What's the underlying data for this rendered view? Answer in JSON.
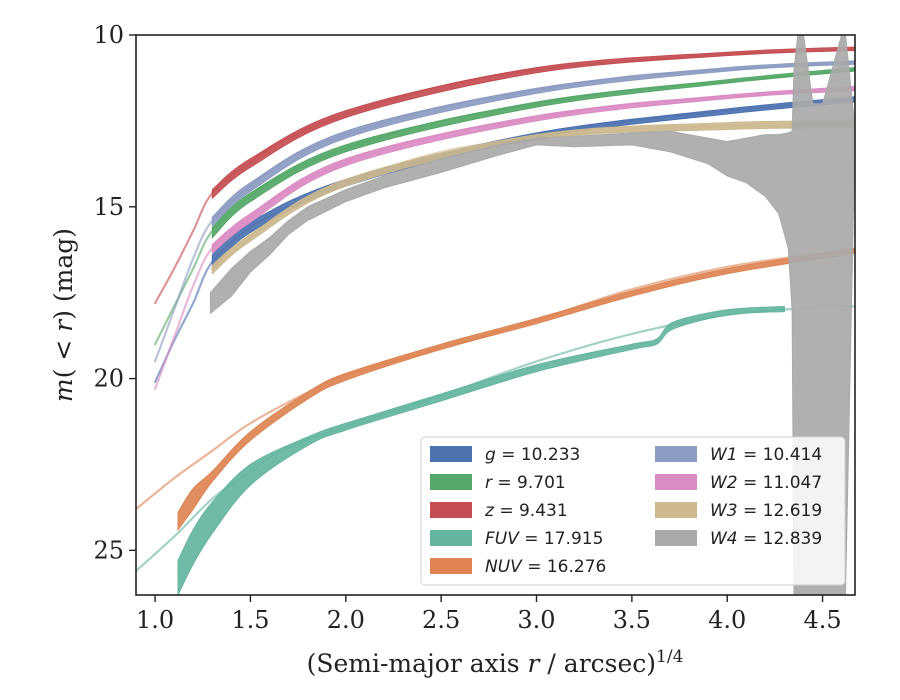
{
  "chart_data": {
    "type": "line",
    "xlabel_main": "(Semi-major axis ",
    "xlabel_var": "r",
    "xlabel_rest": " / arcsec)",
    "xlabel_exp": "1/4",
    "ylabel_main": "m",
    "ylabel_args": "( < ",
    "ylabel_var": "r",
    "ylabel_close": ")",
    "ylabel_unit": " (mag)",
    "xlim": [
      0.9,
      4.67
    ],
    "ylim": [
      26.3,
      10.0
    ],
    "y_inverted": true,
    "x_ticks": [
      1.0,
      1.5,
      2.0,
      2.5,
      3.0,
      3.5,
      4.0,
      4.5
    ],
    "x_tick_labels": [
      "1.0",
      "1.5",
      "2.0",
      "2.5",
      "3.0",
      "3.5",
      "4.0",
      "4.5"
    ],
    "y_ticks": [
      10,
      15,
      20,
      25
    ],
    "y_tick_labels": [
      "10",
      "15",
      "20",
      "25"
    ],
    "grid": false,
    "legend_position": "lower-right",
    "series": [
      {
        "name": "g",
        "value": "10.233",
        "color": "#4c72b0",
        "data": [
          [
            1.0,
            20.1
          ],
          [
            1.1,
            18.9
          ],
          [
            1.2,
            17.8
          ],
          [
            1.3,
            16.6
          ],
          [
            1.5,
            15.6
          ],
          [
            1.7,
            15.0
          ],
          [
            2.0,
            14.3
          ],
          [
            2.5,
            13.5
          ],
          [
            3.0,
            12.9
          ],
          [
            3.5,
            12.5
          ],
          [
            4.0,
            12.2
          ],
          [
            4.5,
            11.95
          ],
          [
            4.67,
            11.85
          ]
        ],
        "thick": [
          [
            1.3,
            16.4,
            16.8
          ],
          [
            1.5,
            15.45,
            15.75
          ],
          [
            2.0,
            14.2,
            14.4
          ],
          [
            3.0,
            12.85,
            13.0
          ],
          [
            4.0,
            12.15,
            12.3
          ],
          [
            4.67,
            11.8,
            11.95
          ]
        ]
      },
      {
        "name": "r",
        "value": "9.701",
        "color": "#55a868",
        "data": [
          [
            1.0,
            19.0
          ],
          [
            1.1,
            17.9
          ],
          [
            1.2,
            16.8
          ],
          [
            1.3,
            15.7
          ],
          [
            1.5,
            14.7
          ],
          [
            1.7,
            14.0
          ],
          [
            2.0,
            13.3
          ],
          [
            2.5,
            12.5
          ],
          [
            3.0,
            12.0
          ],
          [
            3.5,
            11.6
          ],
          [
            4.0,
            11.35
          ],
          [
            4.5,
            11.1
          ],
          [
            4.67,
            11.0
          ]
        ],
        "thick": [
          [
            1.3,
            15.6,
            15.9
          ],
          [
            1.5,
            14.6,
            14.85
          ],
          [
            2.0,
            13.2,
            13.4
          ],
          [
            3.0,
            11.95,
            12.1
          ],
          [
            4.0,
            11.3,
            11.4
          ],
          [
            4.67,
            10.95,
            11.05
          ]
        ]
      },
      {
        "name": "z",
        "value": "9.431",
        "color": "#c44e52",
        "data": [
          [
            1.0,
            17.8
          ],
          [
            1.1,
            16.8
          ],
          [
            1.2,
            15.7
          ],
          [
            1.3,
            14.6
          ],
          [
            1.5,
            13.7
          ],
          [
            1.7,
            13.0
          ],
          [
            2.0,
            12.3
          ],
          [
            2.5,
            11.5
          ],
          [
            3.0,
            11.0
          ],
          [
            3.5,
            10.75
          ],
          [
            4.0,
            10.55
          ],
          [
            4.5,
            10.45
          ],
          [
            4.67,
            10.4
          ]
        ],
        "thick": [
          [
            1.3,
            14.5,
            14.75
          ],
          [
            1.5,
            13.6,
            13.85
          ],
          [
            2.0,
            12.2,
            12.4
          ],
          [
            3.0,
            10.95,
            11.1
          ],
          [
            4.0,
            10.5,
            10.6
          ],
          [
            4.67,
            10.35,
            10.45
          ]
        ]
      },
      {
        "name": "FUV",
        "value": "17.915",
        "color": "#64b5a0",
        "data": [
          [
            0.9,
            25.6
          ],
          [
            1.1,
            24.6
          ],
          [
            1.3,
            23.5
          ],
          [
            1.5,
            22.7
          ],
          [
            1.7,
            22.0
          ],
          [
            2.0,
            21.4
          ],
          [
            2.5,
            20.5
          ],
          [
            3.0,
            19.5
          ],
          [
            3.5,
            18.7
          ],
          [
            4.0,
            18.15
          ],
          [
            4.5,
            17.92
          ],
          [
            4.67,
            17.9
          ]
        ],
        "thick": [
          [
            1.12,
            25.3,
            26.3
          ],
          [
            1.2,
            24.4,
            25.4
          ],
          [
            1.3,
            23.6,
            24.5
          ],
          [
            1.5,
            22.5,
            23.1
          ],
          [
            1.8,
            21.7,
            21.95
          ],
          [
            2.0,
            21.3,
            21.5
          ],
          [
            2.5,
            20.45,
            20.65
          ],
          [
            3.0,
            19.6,
            19.8
          ],
          [
            3.5,
            19.0,
            19.15
          ],
          [
            3.63,
            18.85,
            19.0
          ],
          [
            3.72,
            18.35,
            18.55
          ],
          [
            4.0,
            18.0,
            18.15
          ],
          [
            4.3,
            17.9,
            18.05
          ]
        ]
      },
      {
        "name": "NUV",
        "value": "16.276",
        "color": "#dd8452",
        "data": [
          [
            0.9,
            23.8
          ],
          [
            1.1,
            22.9
          ],
          [
            1.3,
            22.1
          ],
          [
            1.5,
            21.3
          ],
          [
            1.8,
            20.4
          ],
          [
            2.0,
            19.9
          ],
          [
            2.5,
            19.1
          ],
          [
            3.0,
            18.3
          ],
          [
            3.5,
            17.4
          ],
          [
            4.0,
            16.75
          ],
          [
            4.5,
            16.35
          ],
          [
            4.67,
            16.28
          ]
        ],
        "thick": [
          [
            1.12,
            23.9,
            24.4
          ],
          [
            1.2,
            23.2,
            23.8
          ],
          [
            1.3,
            22.7,
            23.0
          ],
          [
            1.5,
            21.55,
            21.8
          ],
          [
            1.8,
            20.4,
            20.6
          ],
          [
            2.0,
            19.85,
            20.05
          ],
          [
            2.5,
            19.0,
            19.15
          ],
          [
            3.0,
            18.25,
            18.4
          ],
          [
            3.5,
            17.45,
            17.6
          ],
          [
            4.0,
            16.8,
            16.95
          ],
          [
            4.67,
            16.2,
            16.35
          ]
        ]
      },
      {
        "name": "W1",
        "value": "10.414",
        "color": "#8c9bc2",
        "data": [
          [
            1.0,
            19.5
          ],
          [
            1.1,
            18.0
          ],
          [
            1.2,
            16.5
          ],
          [
            1.3,
            15.4
          ],
          [
            1.5,
            14.4
          ],
          [
            1.7,
            13.6
          ],
          [
            2.0,
            12.9
          ],
          [
            2.5,
            12.1
          ],
          [
            3.0,
            11.6
          ],
          [
            3.5,
            11.2
          ],
          [
            4.0,
            11.0
          ],
          [
            4.5,
            10.85
          ],
          [
            4.67,
            10.8
          ]
        ],
        "thick": [
          [
            1.3,
            15.3,
            15.55
          ],
          [
            1.5,
            14.3,
            14.55
          ],
          [
            2.0,
            12.8,
            13.0
          ],
          [
            3.0,
            11.55,
            11.7
          ],
          [
            4.0,
            10.95,
            11.05
          ],
          [
            4.67,
            10.75,
            10.85
          ]
        ]
      },
      {
        "name": "W2",
        "value": "11.047",
        "color": "#da8bc3",
        "data": [
          [
            1.0,
            20.3
          ],
          [
            1.1,
            18.8
          ],
          [
            1.2,
            17.3
          ],
          [
            1.3,
            16.2
          ],
          [
            1.5,
            15.3
          ],
          [
            1.7,
            14.5
          ],
          [
            2.0,
            13.7
          ],
          [
            2.5,
            12.9
          ],
          [
            3.0,
            12.4
          ],
          [
            3.5,
            12.0
          ],
          [
            4.0,
            11.8
          ],
          [
            4.5,
            11.62
          ],
          [
            4.67,
            11.58
          ]
        ],
        "thick": [
          [
            1.3,
            16.1,
            16.35
          ],
          [
            1.5,
            15.2,
            15.45
          ],
          [
            2.0,
            13.6,
            13.8
          ],
          [
            3.0,
            12.35,
            12.5
          ],
          [
            4.0,
            11.75,
            11.85
          ],
          [
            4.67,
            11.5,
            11.62
          ]
        ]
      },
      {
        "name": "W3",
        "value": "12.619",
        "color": "#ccb98e",
        "data": [
          [
            1.3,
            16.8
          ],
          [
            1.5,
            15.9
          ],
          [
            1.7,
            15.1
          ],
          [
            2.0,
            14.3
          ],
          [
            2.5,
            13.4
          ],
          [
            3.0,
            13.0
          ],
          [
            3.5,
            12.75
          ],
          [
            4.0,
            12.65
          ],
          [
            4.5,
            12.62
          ],
          [
            4.67,
            12.6
          ]
        ],
        "thick": [
          [
            1.3,
            16.7,
            16.95
          ],
          [
            1.5,
            15.8,
            16.0
          ],
          [
            2.0,
            14.2,
            14.4
          ],
          [
            3.0,
            12.9,
            13.05
          ],
          [
            4.0,
            12.55,
            12.75
          ],
          [
            4.67,
            12.5,
            12.7
          ]
        ]
      },
      {
        "name": "W4",
        "value": "12.839",
        "color": "#a9a9a9",
        "data": [],
        "thick": [
          [
            1.29,
            17.5,
            18.1
          ],
          [
            1.4,
            16.8,
            17.6
          ],
          [
            1.5,
            16.3,
            16.9
          ],
          [
            1.6,
            15.9,
            16.4
          ],
          [
            1.7,
            15.4,
            15.8
          ],
          [
            1.8,
            15.0,
            15.4
          ],
          [
            2.0,
            14.5,
            14.85
          ],
          [
            2.2,
            14.1,
            14.45
          ],
          [
            2.5,
            13.6,
            14.0
          ],
          [
            2.8,
            13.2,
            13.5
          ],
          [
            3.0,
            13.0,
            13.2
          ],
          [
            3.2,
            12.95,
            13.25
          ],
          [
            3.5,
            12.85,
            13.2
          ],
          [
            3.7,
            12.8,
            13.4
          ],
          [
            3.9,
            13.0,
            13.75
          ],
          [
            4.0,
            13.1,
            14.1
          ],
          [
            4.1,
            13.0,
            14.3
          ],
          [
            4.2,
            12.9,
            14.7
          ],
          [
            4.27,
            12.9,
            15.2
          ],
          [
            4.32,
            12.85,
            16.2
          ],
          [
            4.34,
            12.8,
            18.0
          ],
          [
            4.35,
            11.0,
            26.3
          ],
          [
            4.37,
            10.0,
            26.3
          ],
          [
            4.4,
            10.0,
            26.3
          ],
          [
            4.45,
            12.0,
            26.3
          ],
          [
            4.5,
            12.0,
            26.3
          ],
          [
            4.55,
            11.0,
            26.3
          ],
          [
            4.6,
            10.0,
            26.3
          ],
          [
            4.62,
            10.0,
            26.3
          ],
          [
            4.67,
            12.7,
            12.9
          ]
        ]
      }
    ]
  }
}
